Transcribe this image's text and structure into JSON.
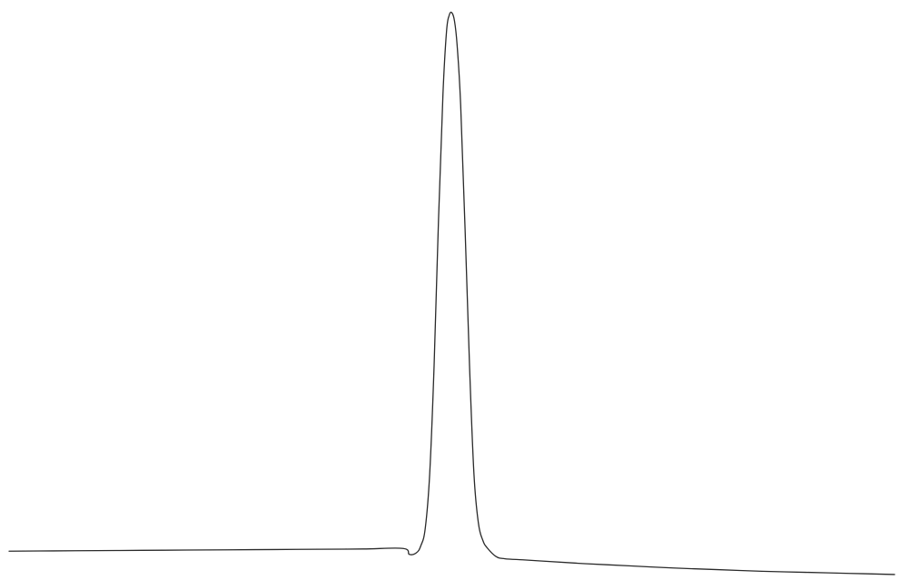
{
  "chart_data": {
    "type": "line",
    "title": "",
    "xlabel": "",
    "ylabel": "",
    "grid": false,
    "legend": "none",
    "xlim": [
      0,
      100
    ],
    "ylim": [
      0,
      100
    ],
    "line_color": "#2a2a2a",
    "background": "#ffffff",
    "series": [
      {
        "x": [
          0,
          5,
          10,
          15,
          20,
          25,
          30,
          35,
          40,
          44.5,
          45.2,
          46,
          46.5,
          47,
          47.5,
          48,
          48.5,
          49,
          49.4,
          49.7,
          50,
          50.3,
          50.6,
          51,
          51.5,
          52,
          52.5,
          53,
          53.5,
          54,
          55,
          56,
          58,
          60,
          65,
          70,
          75,
          80,
          85,
          90,
          95,
          100
        ],
        "y": [
          0.8,
          0.85,
          0.9,
          0.95,
          1.0,
          1.05,
          1.1,
          1.15,
          1.2,
          1.3,
          0.2,
          0.5,
          1.8,
          5.0,
          15.0,
          35.0,
          62.0,
          85.0,
          96.5,
          99.5,
          100.0,
          98.5,
          94.0,
          83.0,
          60.0,
          35.0,
          15.0,
          6.0,
          2.8,
          1.4,
          -0.2,
          -0.6,
          -0.8,
          -1.0,
          -1.5,
          -1.9,
          -2.3,
          -2.6,
          -2.9,
          -3.1,
          -3.3,
          -3.5
        ]
      }
    ]
  }
}
